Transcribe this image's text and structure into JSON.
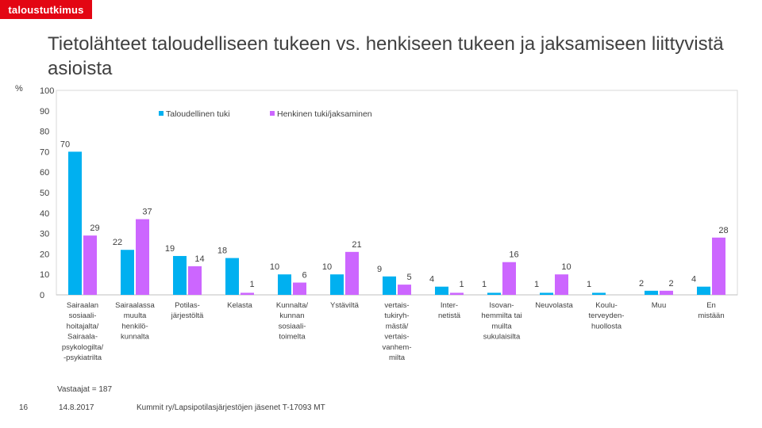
{
  "brand": {
    "logo_text": "taloustutkimus",
    "color": "#E30613"
  },
  "slide": {
    "title": "Tietolähteet taloudelliseen tukeen vs. henkiseen tukeen ja jaksamiseen liittyvistä asioista",
    "axis_unit": "%",
    "respondents": "Vastaajat = 187",
    "page_number": "16",
    "date": "14.8.2017",
    "source": "Kummit ry/Lapsipotilasjärjestöjen jäsenet T-17093 MT"
  },
  "chart_data": {
    "type": "bar",
    "categories": [
      [
        "Sairaalan",
        "sosiaali-",
        "hoitajalta/",
        "Sairaala-",
        "psykologilta/",
        "-psykiatrilta"
      ],
      [
        "Sairaalassa",
        "muulta",
        "henkilö-",
        "kunnalta"
      ],
      [
        "Potilas-",
        "järjestöltä"
      ],
      [
        "Kelasta"
      ],
      [
        "Kunnalta/",
        "kunnan",
        "sosiaali-",
        "toimelta"
      ],
      [
        "Ystäviltä"
      ],
      [
        "vertais-",
        "tukiryh-",
        "mästä/",
        "vertais-",
        "vanhem-",
        "milta"
      ],
      [
        "Inter-",
        "netistä"
      ],
      [
        "Isovan-",
        "hemmilta tai",
        "muilta",
        "sukulaisilta"
      ],
      [
        "Neuvolasta"
      ],
      [
        "Koulu-",
        "terveyden-",
        "huollosta"
      ],
      [
        "Muu"
      ],
      [
        "En",
        "mistään"
      ]
    ],
    "series": [
      {
        "name": "Taloudellinen tuki",
        "color": "#00B0F0",
        "values": [
          70,
          22,
          19,
          18,
          10,
          10,
          9,
          4,
          1,
          1,
          1,
          2,
          4
        ]
      },
      {
        "name": "Henkinen tuki/jaksaminen",
        "color": "#CC66FF",
        "values": [
          29,
          37,
          14,
          1,
          6,
          21,
          5,
          1,
          16,
          10,
          null,
          2,
          28
        ]
      }
    ],
    "value_labels": [
      [
        "70",
        "22",
        "19",
        "18",
        "10",
        "10",
        "9",
        "4",
        "1",
        "1",
        "1",
        "2",
        "4"
      ],
      [
        "29",
        "37",
        "14",
        "1",
        "6",
        "21",
        "5",
        "1",
        "16",
        "10",
        "",
        "2",
        "28"
      ]
    ],
    "ylim": [
      0,
      100
    ],
    "yticks": [
      0,
      10,
      20,
      30,
      40,
      50,
      60,
      70,
      80,
      90,
      100
    ],
    "grid": false,
    "legend": "top-center"
  }
}
